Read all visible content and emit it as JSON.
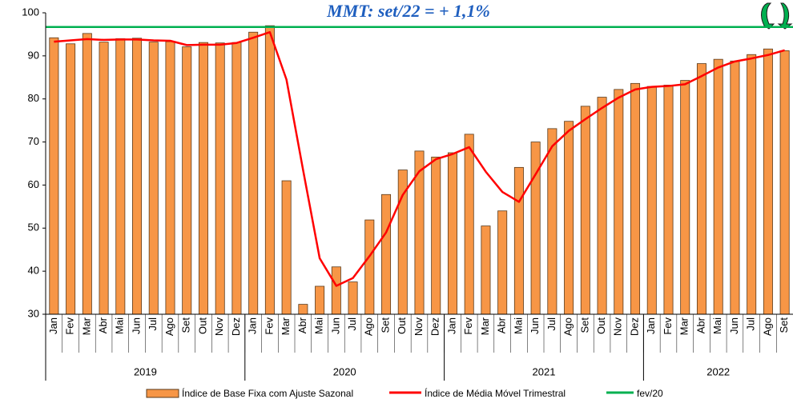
{
  "chart_data": {
    "type": "bar",
    "title": "MMT: set/22 = + 1,1%",
    "categories": [
      "Jan",
      "Fev",
      "Mar",
      "Abr",
      "Mai",
      "Jun",
      "Jul",
      "Ago",
      "Set",
      "Out",
      "Nov",
      "Dez",
      "Jan",
      "Fev",
      "Mar",
      "Abr",
      "Mai",
      "Jun",
      "Jul",
      "Ago",
      "Set",
      "Out",
      "Nov",
      "Dez",
      "Jan",
      "Fev",
      "Mar",
      "Abr",
      "Mai",
      "Jun",
      "Jul",
      "Ago",
      "Set",
      "Out",
      "Nov",
      "Dez",
      "Jan",
      "Fev",
      "Mar",
      "Abr",
      "Mai",
      "Jun",
      "Jul",
      "Ago",
      "Set"
    ],
    "years": [
      "2019",
      "2020",
      "2021",
      "2022"
    ],
    "series": [
      {
        "name": "Índice de Base Fixa com Ajuste Sazonal",
        "type": "bar",
        "color": "#f79646",
        "values": [
          94.2,
          92.8,
          95.2,
          93.2,
          94.0,
          94.1,
          93.2,
          93.3,
          92.1,
          93.1,
          93.0,
          93.1,
          95.5,
          97.0,
          61.0,
          32.3,
          36.5,
          41.0,
          37.5,
          51.9,
          57.8,
          63.5,
          67.9,
          66.5,
          67.5,
          71.8,
          50.5,
          54.0,
          64.1,
          70.0,
          73.1,
          74.8,
          78.3,
          80.4,
          82.2,
          83.6,
          82.9,
          83.2,
          84.3,
          88.2,
          89.2,
          88.8,
          90.3,
          91.6,
          91.2
        ]
      },
      {
        "name": "Índice de Média Móvel Trimestral",
        "type": "line",
        "color": "#ff0000",
        "values": [
          93.3,
          93.6,
          93.9,
          93.7,
          93.8,
          93.8,
          93.6,
          93.5,
          92.5,
          92.6,
          92.6,
          93.0,
          94.2,
          95.5,
          84.5,
          63.5,
          43.0,
          36.6,
          38.4,
          43.5,
          49.0,
          57.7,
          63.2,
          66.0,
          67.2,
          68.8,
          63.1,
          58.4,
          56.1,
          62.5,
          69.0,
          72.6,
          75.3,
          77.9,
          80.3,
          82.2,
          82.8,
          83.0,
          83.4,
          85.3,
          87.3,
          88.7,
          89.4,
          90.2,
          91.3
        ]
      }
    ],
    "reference": {
      "name": "fev/20",
      "value": 96.7,
      "color": "#00b050"
    },
    "ylim": [
      30,
      100
    ],
    "yticks": [
      30,
      40,
      50,
      60,
      70,
      80,
      90,
      100
    ],
    "grid": false
  }
}
